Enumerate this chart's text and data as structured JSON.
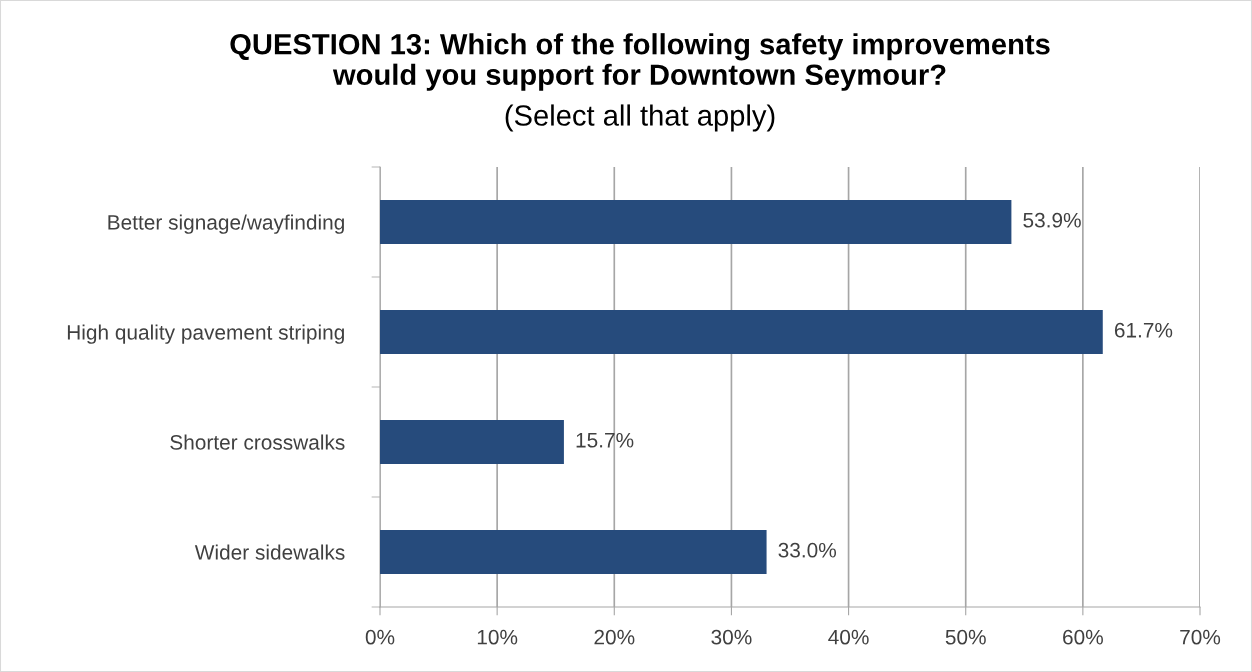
{
  "chart_data": {
    "type": "bar",
    "orientation": "horizontal",
    "title": "QUESTION 13: Which of the following safety improvements\nwould you support for Downtown Seymour?",
    "subtitle": "(Select all that apply)",
    "categories": [
      "Better signage/wayfinding",
      "High quality pavement striping",
      "Shorter crosswalks",
      "Wider sidewalks"
    ],
    "values": [
      53.9,
      61.7,
      15.7,
      33.0
    ],
    "value_labels": [
      "53.9%",
      "61.7%",
      "15.7%",
      "33.0%"
    ],
    "color": "#264b7c",
    "xlim": [
      0,
      70
    ],
    "xticks": [
      {
        "value": 0,
        "label": "0%"
      },
      {
        "value": 10,
        "label": "10%"
      },
      {
        "value": 20,
        "label": "20%"
      },
      {
        "value": 30,
        "label": "30%"
      },
      {
        "value": 40,
        "label": "40%"
      },
      {
        "value": 50,
        "label": "50%"
      },
      {
        "value": 60,
        "label": "60%"
      },
      {
        "value": 70,
        "label": "70%"
      }
    ],
    "grid": "x",
    "legend": false
  }
}
